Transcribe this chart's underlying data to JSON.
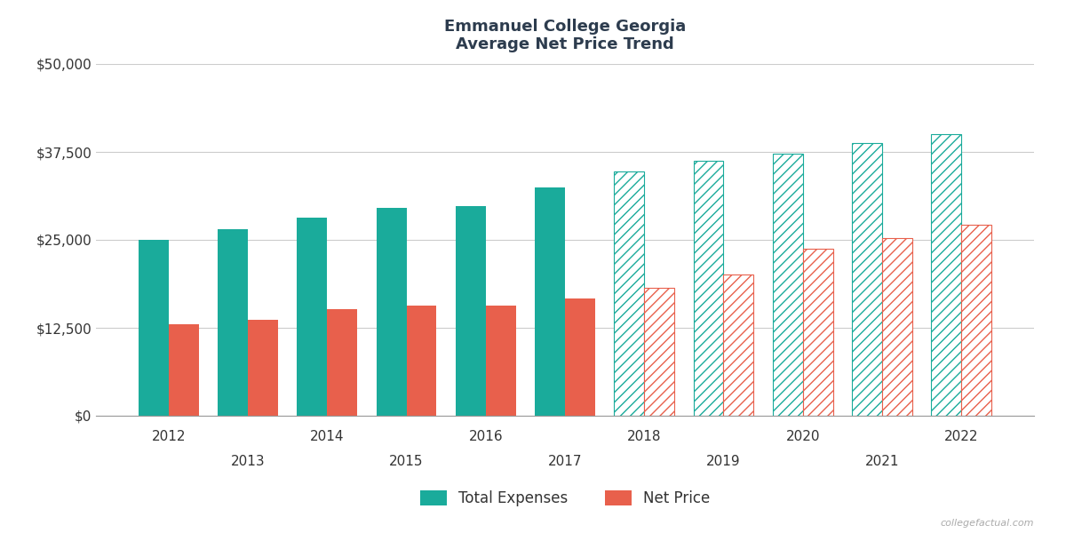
{
  "title_line1": "Emmanuel College Georgia",
  "title_line2": "Average Net Price Trend",
  "years": [
    2012,
    2013,
    2014,
    2015,
    2016,
    2017,
    2018,
    2019,
    2020,
    2021,
    2022
  ],
  "total_expenses": [
    25000,
    26500,
    28200,
    29500,
    29800,
    32500,
    34700,
    36200,
    37200,
    38700,
    40000
  ],
  "net_price": [
    13000,
    13600,
    15100,
    15600,
    15600,
    16700,
    18200,
    20100,
    23700,
    25200,
    27100
  ],
  "solid_years_count": 6,
  "teal_color": "#1aab9b",
  "salmon_color": "#e8604c",
  "hatch_pattern": "///",
  "ylim": [
    0,
    50000
  ],
  "yticks": [
    0,
    12500,
    25000,
    37500,
    50000
  ],
  "ytick_labels": [
    "$0",
    "$12,500",
    "$25,000",
    "$37,500",
    "$50,000"
  ],
  "bar_width": 0.38,
  "background_color": "#ffffff",
  "grid_color": "#cccccc",
  "watermark": "collegefactual.com",
  "legend_label_expenses": "Total Expenses",
  "legend_label_price": "Net Price",
  "title_color": "#2d3c4e",
  "axis_label_color": "#333333",
  "title_fontsize": 13,
  "tick_fontsize": 11
}
